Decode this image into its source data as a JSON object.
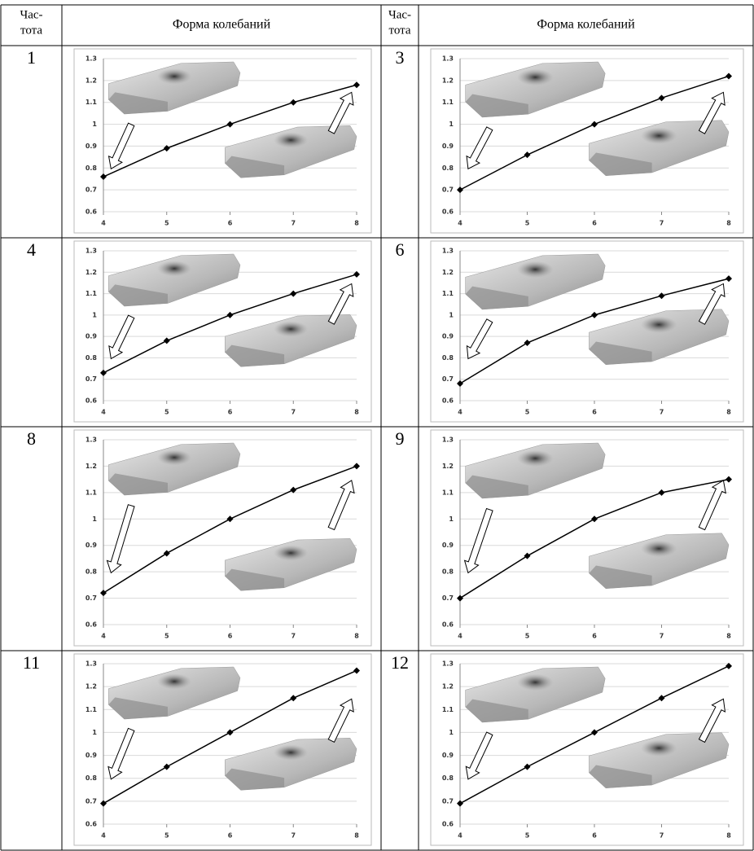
{
  "table": {
    "header": [
      [
        "Час-",
        "тота"
      ],
      "Форма колебаний",
      [
        "Час-",
        "тота"
      ],
      "Форма колебаний"
    ],
    "rows": [
      [
        "1",
        "3"
      ],
      [
        "4",
        "6"
      ],
      [
        "8",
        "9"
      ],
      [
        "11",
        "12"
      ]
    ]
  },
  "chart_data": [
    {
      "type": "line",
      "x": [
        4,
        5,
        6,
        7,
        8
      ],
      "series": [
        {
          "color": "#000000",
          "values": [
            0.76,
            0.89,
            1.0,
            1.1,
            1.18
          ]
        }
      ],
      "xlim": [
        4,
        8
      ],
      "ylim": [
        0.6,
        1.3
      ],
      "xticks": [
        4,
        5,
        6,
        7,
        8
      ],
      "yticks": [
        0.6,
        0.7,
        0.8,
        0.9,
        1,
        1.1,
        1.2,
        1.3
      ],
      "grid": true
    },
    {
      "type": "line",
      "x": [
        4,
        5,
        6,
        7,
        8
      ],
      "series": [
        {
          "color": "#000000",
          "values": [
            0.7,
            0.86,
            1.0,
            1.12,
            1.22
          ]
        }
      ],
      "xlim": [
        4,
        8
      ],
      "ylim": [
        0.6,
        1.3
      ],
      "xticks": [
        4,
        5,
        6,
        7,
        8
      ],
      "yticks": [
        0.6,
        0.7,
        0.8,
        0.9,
        1,
        1.1,
        1.2,
        1.3
      ],
      "grid": true
    },
    {
      "type": "line",
      "x": [
        4,
        5,
        6,
        7,
        8
      ],
      "series": [
        {
          "color": "#000000",
          "values": [
            0.73,
            0.88,
            1.0,
            1.1,
            1.19
          ]
        }
      ],
      "xlim": [
        4,
        8
      ],
      "ylim": [
        0.6,
        1.3
      ],
      "xticks": [
        4,
        5,
        6,
        7,
        8
      ],
      "yticks": [
        0.6,
        0.7,
        0.8,
        0.9,
        1,
        1.1,
        1.2,
        1.3
      ],
      "grid": true
    },
    {
      "type": "line",
      "x": [
        4,
        5,
        6,
        7,
        8
      ],
      "series": [
        {
          "color": "#000000",
          "values": [
            0.68,
            0.87,
            1.0,
            1.09,
            1.17
          ]
        }
      ],
      "xlim": [
        4,
        8
      ],
      "ylim": [
        0.6,
        1.3
      ],
      "xticks": [
        4,
        5,
        6,
        7,
        8
      ],
      "yticks": [
        0.6,
        0.7,
        0.8,
        0.9,
        1,
        1.1,
        1.2,
        1.3
      ],
      "grid": true
    },
    {
      "type": "line",
      "x": [
        4,
        5,
        6,
        7,
        8
      ],
      "series": [
        {
          "color": "#000000",
          "values": [
            0.72,
            0.87,
            1.0,
            1.11,
            1.2
          ]
        }
      ],
      "xlim": [
        4,
        8
      ],
      "ylim": [
        0.6,
        1.3
      ],
      "xticks": [
        4,
        5,
        6,
        7,
        8
      ],
      "yticks": [
        0.6,
        0.7,
        0.8,
        0.9,
        1,
        1.1,
        1.2,
        1.3
      ],
      "grid": true
    },
    {
      "type": "line",
      "x": [
        4,
        5,
        6,
        7,
        8
      ],
      "series": [
        {
          "color": "#000000",
          "values": [
            0.7,
            0.86,
            1.0,
            1.1,
            1.15
          ]
        }
      ],
      "xlim": [
        4,
        8
      ],
      "ylim": [
        0.6,
        1.3
      ],
      "xticks": [
        4,
        5,
        6,
        7,
        8
      ],
      "yticks": [
        0.6,
        0.7,
        0.8,
        0.9,
        1,
        1.1,
        1.2,
        1.3
      ],
      "grid": true
    },
    {
      "type": "line",
      "x": [
        4,
        5,
        6,
        7,
        8
      ],
      "series": [
        {
          "color": "#000000",
          "values": [
            0.69,
            0.85,
            1.0,
            1.15,
            1.27
          ]
        }
      ],
      "xlim": [
        4,
        8
      ],
      "ylim": [
        0.6,
        1.3
      ],
      "xticks": [
        4,
        5,
        6,
        7,
        8
      ],
      "yticks": [
        0.6,
        0.7,
        0.8,
        0.9,
        1,
        1.1,
        1.2,
        1.3
      ],
      "grid": true
    },
    {
      "type": "line",
      "x": [
        4,
        5,
        6,
        7,
        8
      ],
      "series": [
        {
          "color": "#000000",
          "values": [
            0.69,
            0.85,
            1.0,
            1.15,
            1.29
          ]
        }
      ],
      "xlim": [
        4,
        8
      ],
      "ylim": [
        0.6,
        1.3
      ],
      "xticks": [
        4,
        5,
        6,
        7,
        8
      ],
      "yticks": [
        0.6,
        0.7,
        0.8,
        0.9,
        1,
        1.1,
        1.2,
        1.3
      ],
      "grid": true
    }
  ]
}
